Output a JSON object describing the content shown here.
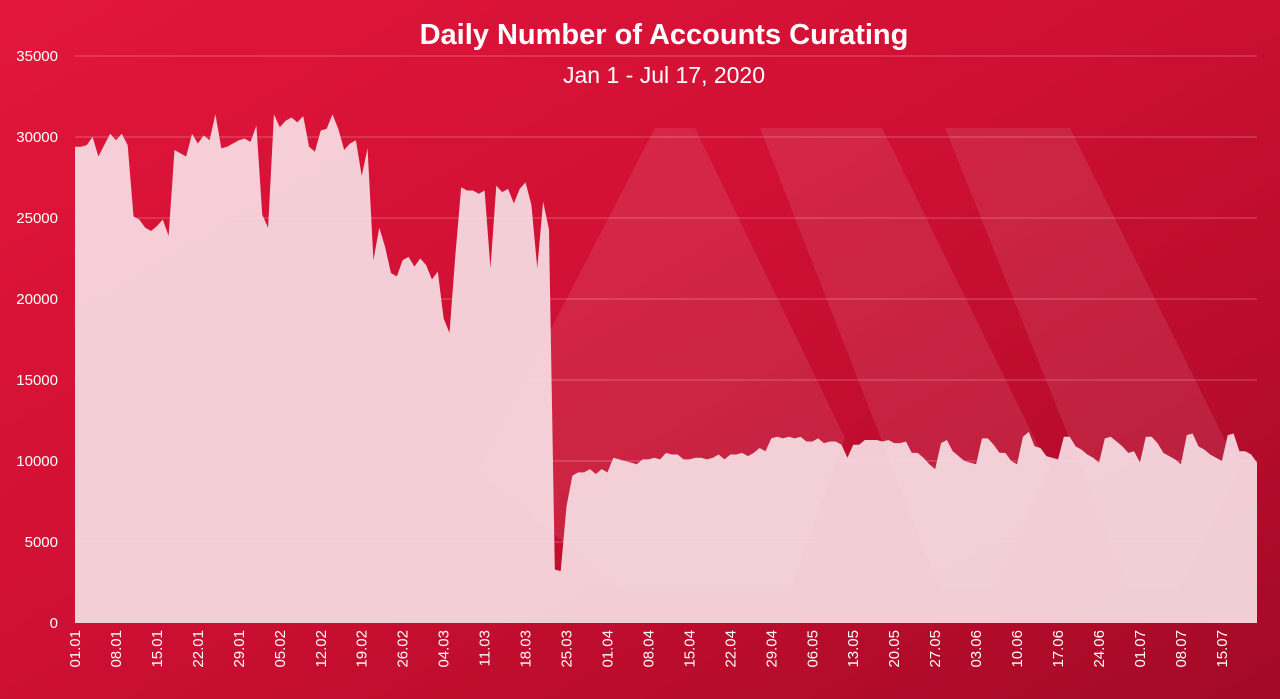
{
  "chart_data": {
    "type": "area",
    "title": "Daily Number of Accounts Curating",
    "subtitle": "Jan 1 - Jul 17, 2020",
    "xlabel": "",
    "ylabel": "",
    "ylim": [
      0,
      35000
    ],
    "y_ticks": [
      0,
      5000,
      10000,
      15000,
      20000,
      25000,
      30000,
      35000
    ],
    "x_tick_labels": [
      "01.01",
      "08.01",
      "15.01",
      "22.01",
      "29.01",
      "05.02",
      "12.02",
      "19.02",
      "26.02",
      "04.03",
      "11.03",
      "18.03",
      "25.03",
      "01.04",
      "08.04",
      "15.04",
      "22.04",
      "29.04",
      "06.05",
      "13.05",
      "20.05",
      "27.05",
      "03.06",
      "10.06",
      "17.06",
      "24.06",
      "01.07",
      "08.07",
      "15.07"
    ],
    "grid": "horizontal",
    "legend": "none",
    "series_color": "#f6dde3",
    "values": [
      29400,
      29400,
      29500,
      30000,
      28800,
      29500,
      30200,
      29800,
      30200,
      29500,
      25100,
      24900,
      24400,
      24200,
      24500,
      24900,
      23900,
      29200,
      29000,
      28800,
      30200,
      29600,
      30100,
      29800,
      31400,
      29300,
      29400,
      29600,
      29800,
      29900,
      29700,
      30700,
      25200,
      24400,
      31400,
      30600,
      31000,
      31200,
      30900,
      31300,
      29400,
      29100,
      30400,
      30500,
      31400,
      30500,
      29200,
      29600,
      29800,
      27600,
      29300,
      22400,
      24400,
      23200,
      21600,
      21400,
      22400,
      22600,
      22000,
      22500,
      22100,
      21200,
      21700,
      18800,
      17900,
      22700,
      26900,
      26700,
      26700,
      26500,
      26700,
      21900,
      27000,
      26600,
      26800,
      25900,
      26800,
      27200,
      25800,
      21900,
      26000,
      24300,
      3300,
      3200,
      7200,
      9100,
      9300,
      9300,
      9500,
      9200,
      9500,
      9300,
      10200,
      10100,
      10000,
      9900,
      9800,
      10100,
      10100,
      10200,
      10100,
      10500,
      10400,
      10400,
      10100,
      10100,
      10200,
      10200,
      10100,
      10200,
      10400,
      10100,
      10400,
      10400,
      10500,
      10300,
      10500,
      10800,
      10600,
      11400,
      11500,
      11400,
      11500,
      11400,
      11500,
      11200,
      11200,
      11400,
      11100,
      11200,
      11200,
      11000,
      10200,
      11000,
      11000,
      11300,
      11300,
      11300,
      11200,
      11300,
      11100,
      11100,
      11200,
      10500,
      10500,
      10200,
      9800,
      9500,
      11100,
      11300,
      10600,
      10300,
      10000,
      9900,
      9800,
      11400,
      11400,
      11000,
      10500,
      10500,
      10000,
      9800,
      11500,
      11800,
      10900,
      10800,
      10300,
      10200,
      10100,
      11500,
      11500,
      10900,
      10700,
      10400,
      10200,
      9900,
      11400,
      11500,
      11200,
      10900,
      10500,
      10600,
      9900,
      11500,
      11500,
      11100,
      10500,
      10300,
      10100,
      9800,
      11600,
      11700,
      10900,
      10700,
      10400,
      10200,
      10000,
      11600,
      11700,
      10600,
      10600,
      10400,
      9900
    ]
  }
}
